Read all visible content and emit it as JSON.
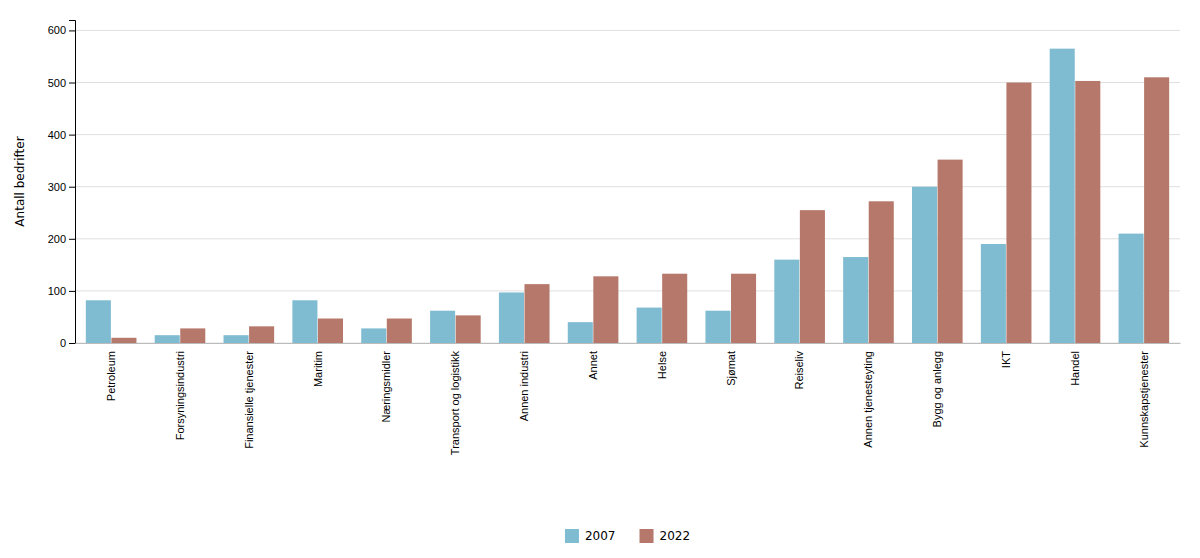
{
  "chart_data": {
    "type": "bar",
    "categories": [
      "Petroleum",
      "Forsyningsindustri",
      "Finansielle tjenester",
      "Maritim",
      "Næringsmidler",
      "Transport og logistikk",
      "Annen industri",
      "Annet",
      "Helse",
      "Sjømat",
      "Reiseliv",
      "Annen tjenesteyting",
      "Bygg og anlegg",
      "IKT",
      "Handel",
      "Kunnskapstjenester"
    ],
    "series": [
      {
        "name": "2007",
        "color": "#7fbcd2",
        "values": [
          82,
          15,
          15,
          82,
          28,
          62,
          97,
          40,
          68,
          62,
          160,
          165,
          300,
          190,
          565,
          210
        ]
      },
      {
        "name": "2022",
        "color": "#b5786a",
        "values": [
          10,
          28,
          32,
          47,
          47,
          53,
          113,
          128,
          133,
          133,
          255,
          272,
          352,
          500,
          503,
          510
        ]
      }
    ],
    "ylabel": "Antall bedrifter",
    "ylim": [
      0,
      620
    ],
    "yticks": [
      0,
      100,
      200,
      300,
      400,
      500,
      600
    ],
    "grid": true,
    "legend": "bottom"
  }
}
